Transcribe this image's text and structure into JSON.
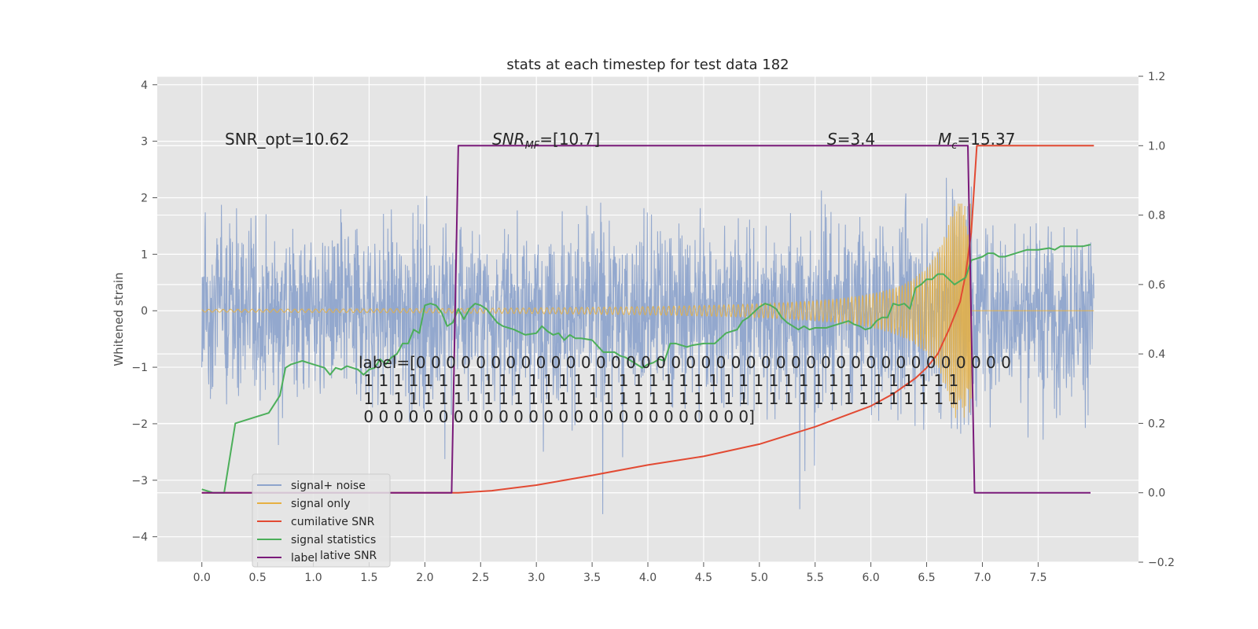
{
  "chart_data": {
    "type": "line",
    "title": "stats at each timestep for test data 182",
    "ylabel": "Whitened strain",
    "xlabel": "",
    "xlim": [
      -0.4,
      8.4
    ],
    "ylim": [
      -4.45,
      4.15
    ],
    "y2lim": [
      -0.2,
      1.2
    ],
    "grid": true,
    "legend_position": "bottom-left",
    "x_ticks": [
      "0.0",
      "0.5",
      "1.0",
      "1.5",
      "2.0",
      "2.5",
      "3.0",
      "3.5",
      "4.0",
      "4.5",
      "5.0",
      "5.5",
      "6.0",
      "6.5",
      "7.0",
      "7.5"
    ],
    "y_ticks": [
      "4",
      "3",
      "2",
      "1",
      "0",
      "−1",
      "−2",
      "−3",
      "−4"
    ],
    "y2_ticks": [
      "1.2",
      "1.0",
      "0.8",
      "0.6",
      "0.4",
      "0.2",
      "0.0",
      "−0.2"
    ],
    "series": [
      {
        "name": "signal+ noise",
        "color": "#8ea4cc",
        "axis": "left",
        "description": "dense noisy whitened strain, roughly within ±2 with spikes to ±3.7",
        "x_range": [
          0.0,
          8.0
        ]
      },
      {
        "name": "signal only",
        "color": "#e6b042",
        "axis": "left",
        "description": "chirp waveform, amplitude growing from ~0 to ~1.9 near t=6.9 then stopping",
        "x_range": [
          0.0,
          8.0
        ]
      },
      {
        "name": "cumilative SNR",
        "color": "#e24a33",
        "axis": "right",
        "x": [
          0.0,
          2.3,
          2.6,
          3.0,
          3.5,
          4.0,
          4.5,
          5.0,
          5.5,
          6.0,
          6.2,
          6.4,
          6.5,
          6.6,
          6.7,
          6.8,
          6.85,
          6.9,
          6.95,
          7.0,
          7.5,
          8.0
        ],
        "y": [
          0.0,
          0.0,
          0.006,
          0.022,
          0.05,
          0.08,
          0.105,
          0.14,
          0.19,
          0.25,
          0.285,
          0.33,
          0.36,
          0.4,
          0.47,
          0.55,
          0.63,
          0.75,
          1.0,
          1.0,
          1.0,
          1.0
        ]
      },
      {
        "name": "signal statistics",
        "color": "#4caf5a",
        "axis": "right",
        "x": [
          0.0,
          0.05,
          0.1,
          0.2,
          0.3,
          0.5,
          0.6,
          0.7,
          0.75,
          0.8,
          0.9,
          1.0,
          1.05,
          1.1,
          1.15,
          1.2,
          1.25,
          1.3,
          1.35,
          1.4,
          1.45,
          1.5,
          1.55,
          1.6,
          1.65,
          1.7,
          1.75,
          1.8,
          1.85,
          1.9,
          1.95,
          2.0,
          2.05,
          2.1,
          2.15,
          2.2,
          2.25,
          2.3,
          2.35,
          2.4,
          2.45,
          2.5,
          2.55,
          2.6,
          2.65,
          2.7,
          2.8,
          2.9,
          3.0,
          3.05,
          3.1,
          3.15,
          3.2,
          3.25,
          3.3,
          3.35,
          3.4,
          3.5,
          3.6,
          3.7,
          3.75,
          3.8,
          3.85,
          3.9,
          3.95,
          4.0,
          4.05,
          4.1,
          4.15,
          4.2,
          4.25,
          4.3,
          4.35,
          4.4,
          4.5,
          4.6,
          4.7,
          4.8,
          4.85,
          4.9,
          4.95,
          5.0,
          5.05,
          5.1,
          5.15,
          5.2,
          5.25,
          5.3,
          5.35,
          5.4,
          5.45,
          5.5,
          5.6,
          5.7,
          5.75,
          5.8,
          5.85,
          5.9,
          5.95,
          6.0,
          6.05,
          6.1,
          6.15,
          6.2,
          6.25,
          6.3,
          6.35,
          6.4,
          6.45,
          6.5,
          6.55,
          6.6,
          6.65,
          6.7,
          6.75,
          6.8,
          6.85,
          6.9,
          6.95,
          7.0,
          7.05,
          7.1,
          7.15,
          7.2,
          7.3,
          7.4,
          7.5,
          7.6,
          7.65,
          7.7,
          7.8,
          7.9,
          7.97
        ],
        "y": [
          0.01,
          0.005,
          0.0,
          0.0,
          0.2,
          0.22,
          0.23,
          0.28,
          0.36,
          0.37,
          0.38,
          0.37,
          0.365,
          0.36,
          0.34,
          0.36,
          0.355,
          0.365,
          0.36,
          0.355,
          0.34,
          0.355,
          0.36,
          0.385,
          0.37,
          0.39,
          0.4,
          0.43,
          0.43,
          0.47,
          0.46,
          0.54,
          0.545,
          0.54,
          0.52,
          0.48,
          0.49,
          0.53,
          0.5,
          0.53,
          0.545,
          0.54,
          0.53,
          0.51,
          0.49,
          0.48,
          0.47,
          0.455,
          0.46,
          0.48,
          0.465,
          0.455,
          0.46,
          0.44,
          0.455,
          0.445,
          0.445,
          0.44,
          0.405,
          0.405,
          0.395,
          0.39,
          0.38,
          0.37,
          0.36,
          0.37,
          0.375,
          0.385,
          0.38,
          0.43,
          0.43,
          0.425,
          0.42,
          0.425,
          0.43,
          0.43,
          0.46,
          0.47,
          0.495,
          0.505,
          0.52,
          0.535,
          0.545,
          0.54,
          0.53,
          0.505,
          0.49,
          0.48,
          0.47,
          0.48,
          0.47,
          0.475,
          0.475,
          0.485,
          0.49,
          0.495,
          0.485,
          0.48,
          0.47,
          0.475,
          0.495,
          0.505,
          0.505,
          0.545,
          0.54,
          0.545,
          0.53,
          0.59,
          0.6,
          0.615,
          0.615,
          0.63,
          0.63,
          0.615,
          0.6,
          0.61,
          0.62,
          0.67,
          0.675,
          0.68,
          0.69,
          0.69,
          0.68,
          0.68,
          0.69,
          0.7,
          0.7,
          0.705,
          0.7,
          0.71,
          0.71,
          0.71,
          0.715
        ]
      },
      {
        "name": "label",
        "color": "#7a1a7a",
        "axis": "right",
        "x": [
          0.0,
          2.24,
          2.3,
          6.87,
          6.93,
          7.97
        ],
        "y": [
          0.0,
          0.0,
          1.0,
          1.0,
          0.0,
          0.0
        ]
      }
    ],
    "annotations": {
      "snr_opt": "SNR_opt=10.62",
      "snr_mf_sym": "SNR",
      "snr_mf_sub": "MF",
      "snr_mf_val": "=[10.7]",
      "s_sym": "S",
      "s_val": "=3.4",
      "mc_sym": "M",
      "mc_sub": "c",
      "mc_val": "=15.37",
      "label_lines": [
        "label=[0 0 0 0 0 0 0 0 0 0 0 0 0 0 0 0 0 0 0 0 0 0 0 0 0 0 0 0 0 0 0 0 0 0 0 0 0 0 0 0",
        " 1 1 1 1 1 1 1 1 1 1 1 1 1 1 1 1 1 1 1 1 1 1 1 1 1 1 1 1 1 1 1 1 1 1 1 1 1 1 1 1",
        " 1 1 1 1 1 1 1 1 1 1 1 1 1 1 1 1 1 1 1 1 1 1 1 1 1 1 1 1 1 1 1 1 1 1 1 1 1 1 1 1",
        " 0 0 0 0 0 0 0 0 0 0 0 0 0 0 0 0 0 0 0 0 0 0 0 0 0 0]"
      ]
    }
  },
  "legend": {
    "items": [
      {
        "label": "signal+ noise",
        "color": "#8ea4cc"
      },
      {
        "label": "signal only",
        "color": "#e6b042"
      },
      {
        "label": "cumilative SNR",
        "color": "#e24a33"
      },
      {
        "label": "signal statistics",
        "color": "#4caf5a"
      },
      {
        "label": "label",
        "color": "#7a1a7a"
      }
    ],
    "ghost": "lative SNR"
  }
}
